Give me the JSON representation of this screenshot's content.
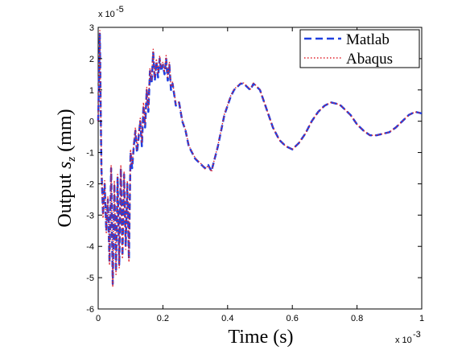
{
  "chart_data": {
    "type": "line",
    "xlabel": "Time (s)",
    "ylabel_main": "Output ",
    "ylabel_var": "s",
    "ylabel_sub": "z",
    "ylabel_unit": " (mm)",
    "x_exponent_base": "x 10",
    "x_exponent_power": "-3",
    "y_exponent_base": "x 10",
    "y_exponent_power": "-5",
    "xlim": [
      0,
      1
    ],
    "ylim": [
      -6,
      3
    ],
    "x_ticks": [
      0,
      0.2,
      0.4,
      0.6,
      0.8,
      1
    ],
    "x_tick_labels": [
      "0",
      "0.2",
      "0.4",
      "0.6",
      "0.8",
      "1"
    ],
    "y_ticks": [
      -6,
      -5,
      -4,
      -3,
      -2,
      -1,
      0,
      1,
      2,
      3
    ],
    "y_tick_labels": [
      "-6",
      "-5",
      "-4",
      "-3",
      "-2",
      "-1",
      "0",
      "1",
      "2",
      "3"
    ],
    "grid": false,
    "legend_position": "top-right",
    "x_scale_note": "x values in units of 1e-3 s; y values in units of 1e-5 mm",
    "series": [
      {
        "name": "Matlab",
        "color": "#1f3fe0",
        "style": "dashed",
        "x": [
          0,
          0.005,
          0.01,
          0.015,
          0.02,
          0.025,
          0.03,
          0.035,
          0.04,
          0.045,
          0.05,
          0.055,
          0.06,
          0.065,
          0.07,
          0.075,
          0.08,
          0.085,
          0.09,
          0.095,
          0.1,
          0.105,
          0.11,
          0.115,
          0.12,
          0.125,
          0.13,
          0.135,
          0.14,
          0.145,
          0.15,
          0.155,
          0.16,
          0.165,
          0.17,
          0.175,
          0.18,
          0.185,
          0.19,
          0.195,
          0.2,
          0.205,
          0.21,
          0.215,
          0.22,
          0.225,
          0.23,
          0.24,
          0.25,
          0.26,
          0.27,
          0.28,
          0.29,
          0.3,
          0.31,
          0.32,
          0.33,
          0.34,
          0.35,
          0.36,
          0.37,
          0.38,
          0.39,
          0.4,
          0.41,
          0.42,
          0.43,
          0.44,
          0.45,
          0.46,
          0.47,
          0.48,
          0.49,
          0.5,
          0.52,
          0.54,
          0.56,
          0.58,
          0.6,
          0.62,
          0.64,
          0.66,
          0.68,
          0.7,
          0.72,
          0.74,
          0.75,
          0.76,
          0.78,
          0.8,
          0.82,
          0.84,
          0.86,
          0.88,
          0.9,
          0.92,
          0.94,
          0.96,
          0.98,
          1.0
        ],
        "y": [
          0,
          2.8,
          -1.5,
          -3.0,
          -2.0,
          -3.5,
          -2.5,
          -4.5,
          -1.5,
          -5.2,
          -2.0,
          -4.8,
          -1.8,
          -4.6,
          -1.5,
          -4.3,
          -1.7,
          -4.0,
          -2.0,
          -4.4,
          -1.0,
          -1.5,
          -0.8,
          -0.3,
          -1.0,
          -0.5,
          0.0,
          -0.8,
          0.5,
          -0.2,
          1.0,
          0.3,
          1.6,
          1.2,
          2.2,
          1.3,
          1.9,
          1.4,
          2.0,
          1.6,
          1.8,
          1.5,
          2.0,
          1.3,
          1.8,
          1.0,
          1.2,
          0.5,
          0.6,
          0.0,
          -0.3,
          -0.8,
          -1.0,
          -1.2,
          -1.3,
          -1.4,
          -1.5,
          -1.4,
          -1.6,
          -1.2,
          -0.8,
          -0.3,
          0.2,
          0.5,
          0.8,
          1.0,
          1.1,
          1.2,
          1.2,
          1.1,
          1.0,
          1.2,
          1.1,
          1.0,
          0.4,
          -0.2,
          -0.6,
          -0.8,
          -0.9,
          -0.7,
          -0.4,
          0.0,
          0.3,
          0.5,
          0.6,
          0.55,
          0.5,
          0.4,
          0.2,
          -0.1,
          -0.3,
          -0.45,
          -0.45,
          -0.4,
          -0.35,
          -0.2,
          0.0,
          0.2,
          0.3,
          0.25
        ]
      },
      {
        "name": "Abaqus",
        "color": "#e0202a",
        "style": "dotted",
        "x": [
          0,
          0.005,
          0.01,
          0.015,
          0.02,
          0.025,
          0.03,
          0.035,
          0.04,
          0.045,
          0.05,
          0.055,
          0.06,
          0.065,
          0.07,
          0.075,
          0.08,
          0.085,
          0.09,
          0.095,
          0.1,
          0.105,
          0.11,
          0.115,
          0.12,
          0.125,
          0.13,
          0.135,
          0.14,
          0.145,
          0.15,
          0.155,
          0.16,
          0.165,
          0.17,
          0.175,
          0.18,
          0.185,
          0.19,
          0.195,
          0.2,
          0.205,
          0.21,
          0.215,
          0.22,
          0.225,
          0.23,
          0.24,
          0.25,
          0.26,
          0.27,
          0.28,
          0.29,
          0.3,
          0.31,
          0.32,
          0.33,
          0.34,
          0.35,
          0.36,
          0.37,
          0.38,
          0.39,
          0.4,
          0.41,
          0.42,
          0.43,
          0.44,
          0.45,
          0.46,
          0.47,
          0.48,
          0.49,
          0.5,
          0.52,
          0.54,
          0.56,
          0.58,
          0.6,
          0.62,
          0.64,
          0.66,
          0.68,
          0.7,
          0.72,
          0.74,
          0.75,
          0.76,
          0.78,
          0.8,
          0.82,
          0.84,
          0.86,
          0.88,
          0.9,
          0.92,
          0.94,
          0.96,
          0.98,
          1.0
        ],
        "y": [
          0,
          2.9,
          -1.4,
          -3.1,
          -1.9,
          -3.6,
          -2.4,
          -4.6,
          -1.4,
          -5.3,
          -1.9,
          -4.9,
          -1.7,
          -4.7,
          -1.4,
          -4.4,
          -1.6,
          -4.1,
          -1.9,
          -4.5,
          -0.9,
          -1.4,
          -0.7,
          -0.2,
          -0.9,
          -0.4,
          0.1,
          -0.7,
          0.6,
          -0.1,
          1.1,
          0.4,
          1.7,
          1.3,
          2.3,
          1.4,
          2.0,
          1.5,
          2.1,
          1.7,
          1.9,
          1.6,
          2.1,
          1.4,
          1.9,
          1.1,
          1.25,
          0.55,
          0.62,
          0.02,
          -0.28,
          -0.78,
          -0.98,
          -1.18,
          -1.28,
          -1.38,
          -1.52,
          -1.42,
          -1.62,
          -1.18,
          -0.78,
          -0.28,
          0.22,
          0.52,
          0.82,
          1.02,
          1.12,
          1.22,
          1.22,
          1.12,
          1.02,
          1.22,
          1.12,
          1.0,
          0.4,
          -0.2,
          -0.6,
          -0.8,
          -0.9,
          -0.7,
          -0.4,
          0.0,
          0.3,
          0.5,
          0.6,
          0.55,
          0.5,
          0.4,
          0.2,
          -0.1,
          -0.3,
          -0.45,
          -0.45,
          -0.4,
          -0.35,
          -0.2,
          0.0,
          0.2,
          0.3,
          0.25
        ]
      }
    ]
  }
}
